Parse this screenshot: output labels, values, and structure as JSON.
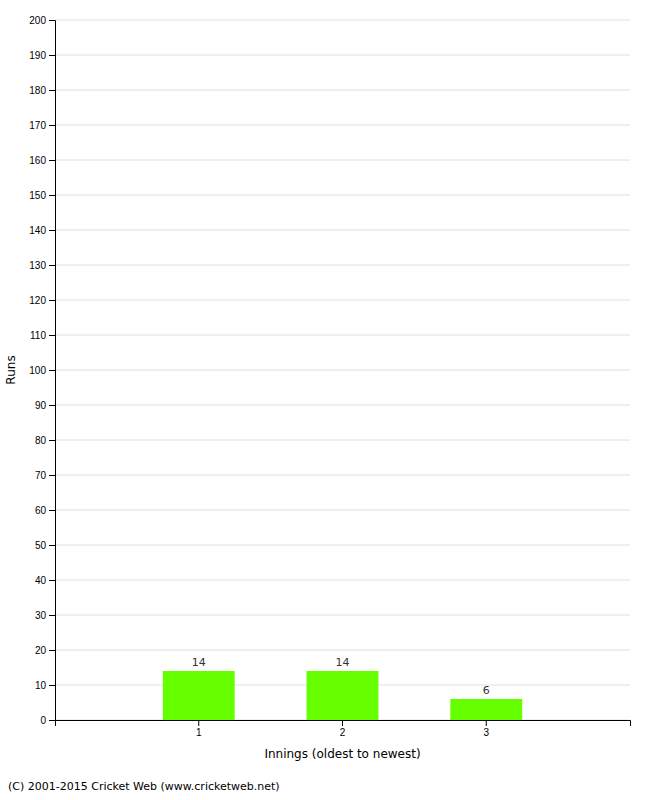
{
  "chart_data": {
    "type": "bar",
    "categories": [
      "1",
      "2",
      "3"
    ],
    "values": [
      14,
      14,
      6
    ],
    "color": "#66ff00",
    "xlabel": "Innings (oldest to newest)",
    "ylabel": "Runs",
    "ylim": [
      0,
      200
    ],
    "yticks": [
      0,
      10,
      20,
      30,
      40,
      50,
      60,
      70,
      80,
      90,
      100,
      110,
      120,
      130,
      140,
      150,
      160,
      170,
      180,
      190,
      200
    ],
    "grid": true,
    "data_labels": true,
    "annotations": [
      "(C) 2001-2015 Cricket Web (www.cricketweb.net)"
    ]
  }
}
